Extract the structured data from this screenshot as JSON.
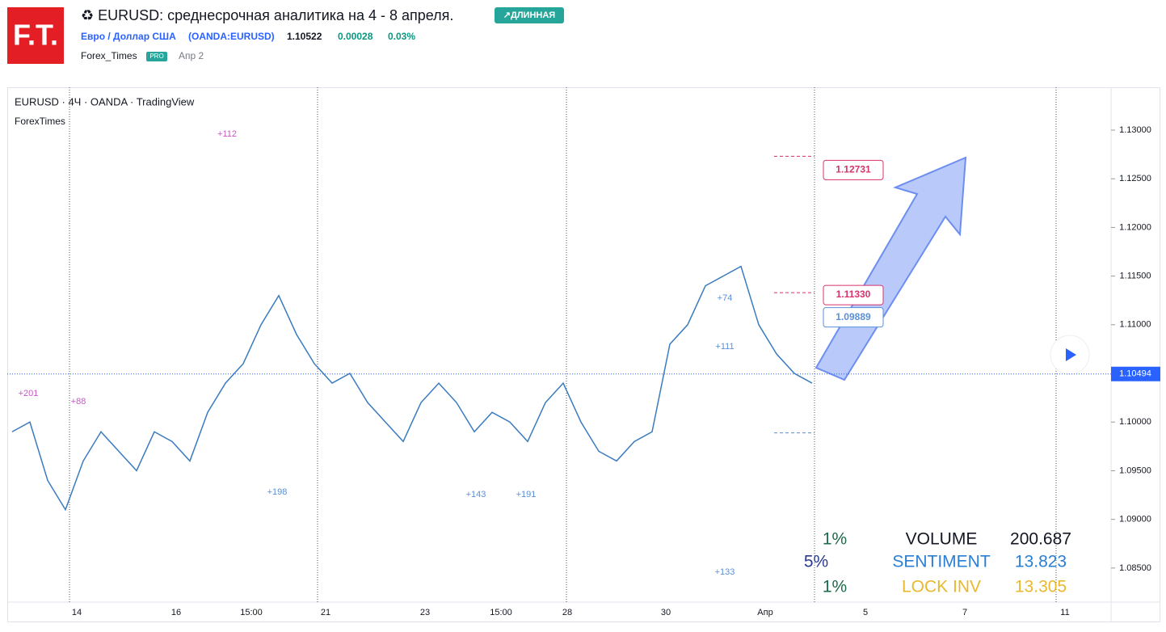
{
  "header": {
    "logo": "F.T.",
    "title": "♻ EURUSD: среднесрочная аналитика на 4 - 8 апреля.",
    "badge": "↗ДЛИННАЯ",
    "instrument": "Евро / Доллар США",
    "ticker": "(OANDA:EURUSD)",
    "price": "1.10522",
    "change": "0.00028",
    "change_pct": "0.03%",
    "author": "Forex_Times",
    "author_badge": "PRO",
    "date": "Апр 2"
  },
  "chart": {
    "legend": "EURUSD · 4Ч · OANDA · TradingView",
    "indicator": "ForexTimes",
    "ylim": [
      1.0815,
      1.1344
    ],
    "yticks": [
      {
        "value": 1.085,
        "label": "1.08500"
      },
      {
        "value": 1.09,
        "label": "1.09000"
      },
      {
        "value": 1.095,
        "label": "1.09500"
      },
      {
        "value": 1.1,
        "label": "1.10000"
      },
      {
        "value": 1.105,
        "label": "1.10500"
      },
      {
        "value": 1.11,
        "label": "1.11000"
      },
      {
        "value": 1.115,
        "label": "1.11500"
      },
      {
        "value": 1.12,
        "label": "1.12000"
      },
      {
        "value": 1.125,
        "label": "1.12500"
      },
      {
        "value": 1.13,
        "label": "1.13000"
      }
    ],
    "xlabels": [
      "14",
      "16",
      "15:00",
      "21",
      "23",
      "15:00",
      "28",
      "30",
      "Апр",
      "5",
      "7",
      "11"
    ],
    "closes": [
      1.099,
      1.1,
      1.094,
      1.091,
      1.096,
      1.099,
      1.097,
      1.095,
      1.099,
      1.098,
      1.096,
      1.101,
      1.104,
      1.106,
      1.11,
      1.113,
      1.109,
      1.106,
      1.104,
      1.105,
      1.102,
      1.1,
      1.098,
      1.102,
      1.104,
      1.102,
      1.099,
      1.101,
      1.1,
      1.098,
      1.102,
      1.104,
      1.1,
      1.097,
      1.096,
      1.098,
      1.099,
      1.108,
      1.11,
      1.114,
      1.115,
      1.116,
      1.11,
      1.107,
      1.105,
      1.104
    ],
    "current": {
      "value": 1.10494,
      "label": "1.10494"
    },
    "targets": [
      {
        "value": 1.12731,
        "label": "1.12731",
        "color": "#d6336c"
      },
      {
        "value": 1.1133,
        "label": "1.11330",
        "color": "#d6336c"
      },
      {
        "value": 1.09889,
        "label": "1.09889",
        "color": "#5b8fd6"
      }
    ],
    "annotations": [
      "+112",
      "+201",
      "+88",
      "+198",
      "+143",
      "+191",
      "+74",
      "+111",
      "+133"
    ],
    "stats": [
      [
        "1%",
        "VOLUME",
        "200.687"
      ],
      [
        "5%",
        "SENTIMENT",
        "13.823"
      ],
      [
        "1%",
        "LOCK INV",
        "13.305"
      ]
    ]
  }
}
